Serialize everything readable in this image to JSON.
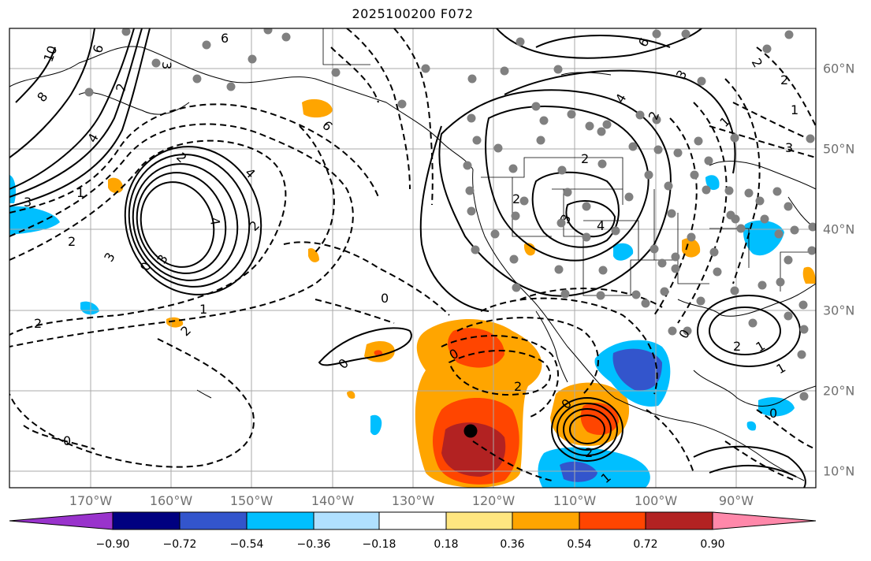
{
  "title": "2025100200 F072",
  "lon_labels": [
    "170°W",
    "160°W",
    "150°W",
    "140°W",
    "130°W",
    "120°W",
    "110°W",
    "100°W",
    "90°W"
  ],
  "lat_labels": [
    "60°N",
    "50°N",
    "40°N",
    "30°N",
    "20°N",
    "10°N"
  ],
  "colorbar": {
    "ticks": [
      "−0.90",
      "−0.72",
      "−0.54",
      "−0.36",
      "−0.18",
      "0.18",
      "0.36",
      "0.54",
      "0.72",
      "0.90"
    ],
    "colors": [
      "#9933cc",
      "#000080",
      "#3355cc",
      "#00bfff",
      "#b0e0ff",
      "#ffffff",
      "#ffe680",
      "#ffa500",
      "#ff4500",
      "#b22222",
      "#ff88aa"
    ]
  },
  "contour_labels": [
    "10",
    "6",
    "8",
    "6",
    "2",
    "3",
    "4",
    "1",
    "3",
    "2",
    "3",
    "0",
    "2",
    "1",
    "0",
    "2",
    "2",
    "6",
    "4",
    "2",
    "0",
    "3",
    "6",
    "4",
    "4",
    "2",
    "3",
    "4",
    "2",
    "3",
    "2",
    "1",
    "3",
    "2",
    "1",
    "2",
    "1",
    "0",
    "0",
    "2",
    "0",
    "2",
    "1",
    "1",
    "0",
    "0",
    "2"
  ],
  "colors": {
    "dashed_contour": "#000000",
    "solid_contour": "#000000",
    "grid": "#aaaaaa",
    "station_dot": "#808080",
    "storm_center": "#000000"
  }
}
